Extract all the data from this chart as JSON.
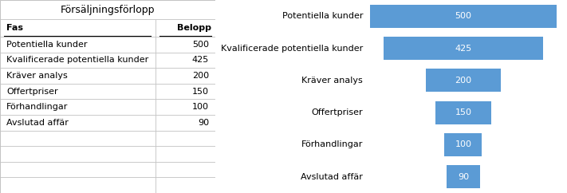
{
  "title": "Försäljningsförlopp",
  "col_headers": [
    "Fas",
    "Belopp"
  ],
  "phases": [
    "Potentiella kunder",
    "Kvalificerade potentiella kunder",
    "Kräver analys",
    "Offertpriser",
    "Förhandlingar",
    "Avslutad affär"
  ],
  "values": [
    500,
    425,
    200,
    150,
    100,
    90
  ],
  "bar_color": "#5B9BD5",
  "table_bg": "#FFFFFF",
  "grid_color": "#BFBFBF",
  "title_fontsize": 9,
  "label_fontsize": 8,
  "value_fontsize": 8,
  "bar_label_fontsize": 8,
  "max_val": 500
}
